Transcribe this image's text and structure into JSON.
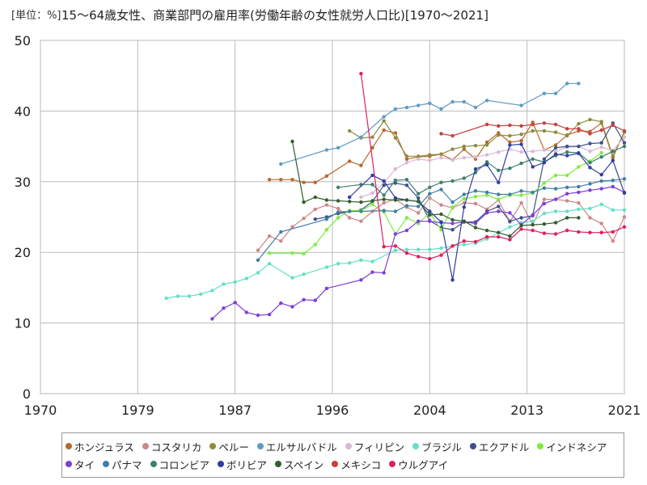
{
  "unit_label": "[単位：%]",
  "title": "15〜64歳女性、商業部門の雇用率(労働年齢の女性就労人口比)[1970〜2021]",
  "chart_data": {
    "type": "line",
    "xlim": [
      1970,
      2021
    ],
    "ylim": [
      0,
      50
    ],
    "xticks": [
      "1970",
      "1979",
      "1987",
      "1996",
      "2004",
      "2013",
      "2021"
    ],
    "xtick_values": [
      1970,
      1978.5,
      1987,
      1995.5,
      2004,
      2012.5,
      2021
    ],
    "yticks": [
      0,
      10,
      20,
      30,
      40,
      50
    ],
    "grid": true,
    "legend_position": "bottom",
    "series": [
      {
        "name": "ホンジュラス",
        "color": "#b8672e",
        "x": [
          1990,
          1991,
          1992,
          1993,
          1994,
          1995,
          1997,
          1998,
          1999,
          2000,
          2001,
          2002,
          2003,
          2004,
          2005,
          2006,
          2007,
          2008,
          2009,
          2010,
          2011,
          2012,
          2013,
          2014,
          2015,
          2016,
          2017,
          2018,
          2019,
          2020,
          2021
        ],
        "y": [
          30.3,
          30.3,
          30.3,
          29.9,
          29.9,
          30.8,
          32.9,
          32.3,
          34.8,
          37.3,
          36.9,
          33.2,
          33.5,
          33.6,
          33.9,
          33.1,
          34.6,
          33.2,
          35.6,
          36.9,
          35.6,
          35.8,
          38.4,
          34.5,
          35.2,
          36.6,
          37.2,
          37.1,
          38.3,
          33.4,
          37.1
        ]
      },
      {
        "name": "コスタリカ",
        "color": "#cd8787",
        "x": [
          1989,
          1990,
          1991,
          1992,
          1993,
          1994,
          1995,
          1996,
          1997,
          1998,
          1999,
          2000,
          2001,
          2002,
          2003,
          2004,
          2005,
          2006,
          2007,
          2008,
          2009,
          2010,
          2011,
          2012,
          2013,
          2014,
          2015,
          2016,
          2017,
          2018,
          2019,
          2020,
          2021
        ],
        "y": [
          20.3,
          22.3,
          21.6,
          23.6,
          24.8,
          26.1,
          26.7,
          26.2,
          24.9,
          24.4,
          25.8,
          27.0,
          27.5,
          26.4,
          25.6,
          27.7,
          26.7,
          26.3,
          27.0,
          26.9,
          26.1,
          27.4,
          24.3,
          27.0,
          23.9,
          27.5,
          27.5,
          27.3,
          27.0,
          24.9,
          24.1,
          21.6,
          25.0
        ]
      },
      {
        "name": "ペルー",
        "color": "#8c8c3c",
        "x": [
          1997,
          1998,
          1999,
          2000,
          2001,
          2002,
          2003,
          2004,
          2005,
          2006,
          2007,
          2008,
          2009,
          2010,
          2011,
          2012,
          2013,
          2014,
          2015,
          2016,
          2017,
          2018,
          2019,
          2020,
          2021
        ],
        "y": [
          37.2,
          36.2,
          36.3,
          38.6,
          36.2,
          33.6,
          33.6,
          33.8,
          33.9,
          34.6,
          35.0,
          35.1,
          35.2,
          36.6,
          36.5,
          36.7,
          37.2,
          37.2,
          37.0,
          36.5,
          38.2,
          38.8,
          38.5,
          33.6,
          37.0
        ]
      },
      {
        "name": "エルサルバドル",
        "color": "#5d9bc2",
        "x": [
          1991,
          1995,
          1996,
          1998,
          2000,
          2001,
          2002,
          2003,
          2004,
          2005,
          2006,
          2007,
          2008,
          2009,
          2012,
          2014,
          2015,
          2016,
          2017
        ],
        "y": [
          32.5,
          34.5,
          34.8,
          36.3,
          39.2,
          40.3,
          40.5,
          40.8,
          41.1,
          40.3,
          41.3,
          41.3,
          40.5,
          41.5,
          40.8,
          42.5,
          42.5,
          43.9,
          43.9
        ]
      },
      {
        "name": "フィリピン",
        "color": "#dbb8d4",
        "x": [
          1998,
          1999,
          2000,
          2001,
          2002,
          2003,
          2004,
          2005,
          2006,
          2007,
          2008,
          2009,
          2010,
          2011,
          2012,
          2013,
          2014,
          2015,
          2016,
          2017,
          2018,
          2019,
          2020,
          2021
        ],
        "y": [
          27.8,
          28.4,
          29.8,
          31.8,
          32.7,
          33.2,
          33.0,
          33.4,
          33.1,
          33.4,
          33.5,
          33.8,
          34.2,
          34.6,
          34.2,
          34.3,
          34.5,
          34.3,
          34.9,
          35.0,
          34.3,
          34.9,
          34.4,
          36.3
        ]
      },
      {
        "name": "ブラジル",
        "color": "#63e0c6",
        "x": [
          1981,
          1982,
          1983,
          1984,
          1985,
          1986,
          1987,
          1988,
          1989,
          1990,
          1992,
          1993,
          1995,
          1996,
          1997,
          1998,
          1999,
          2001,
          2002,
          2003,
          2004,
          2005,
          2006,
          2007,
          2008,
          2009,
          2011,
          2012,
          2013,
          2014,
          2015,
          2016,
          2017,
          2018,
          2019,
          2020,
          2021
        ],
        "y": [
          13.5,
          13.8,
          13.8,
          14.1,
          14.6,
          15.5,
          15.8,
          16.3,
          17.1,
          18.4,
          16.4,
          16.9,
          17.9,
          18.4,
          18.5,
          18.9,
          18.7,
          20.3,
          20.4,
          20.4,
          20.4,
          20.6,
          20.9,
          21.1,
          21.3,
          21.9,
          23.6,
          24.2,
          24.4,
          25.5,
          25.8,
          25.8,
          26.1,
          26.2,
          26.8,
          26.0,
          26.0
        ]
      },
      {
        "name": "エクアドル",
        "color": "#3f4f8c",
        "x": [
          1994,
          1995,
          1996,
          1998,
          1999,
          2000,
          2001,
          2002,
          2003,
          2004,
          2005,
          2006,
          2007,
          2008,
          2009,
          2010,
          2011,
          2012,
          2013,
          2014,
          2015,
          2016,
          2017,
          2018,
          2019,
          2020,
          2021
        ],
        "y": [
          24.7,
          25.0,
          25.5,
          26.0,
          27.2,
          29.5,
          29.8,
          29.5,
          27.7,
          24.5,
          23.5,
          23.2,
          24.3,
          24.3,
          25.8,
          26.5,
          24.4,
          24.9,
          25.2,
          33.2,
          34.8,
          35.0,
          35.0,
          35.4,
          35.5,
          38.3,
          35.5
        ]
      },
      {
        "name": "インドネシア",
        "color": "#7fec3f",
        "x": [
          1990,
          1992,
          1993,
          1994,
          1995,
          1996,
          1997,
          1998,
          1999,
          2000,
          2001,
          2002,
          2003,
          2004,
          2005,
          2006,
          2007,
          2008,
          2009,
          2010,
          2011,
          2012,
          2013,
          2014,
          2015,
          2016,
          2017,
          2018,
          2019
        ],
        "y": [
          19.9,
          19.9,
          19.8,
          21.1,
          23.2,
          24.9,
          25.9,
          25.9,
          26.8,
          25.7,
          22.6,
          24.9,
          24.1,
          25.6,
          23.2,
          26.4,
          27.6,
          27.9,
          28.1,
          27.5,
          28.1,
          28.1,
          28.4,
          29.8,
          30.9,
          30.9,
          32.1,
          32.9,
          34.1
        ]
      },
      {
        "name": "タイ",
        "color": "#7d3fd8",
        "x": [
          1985,
          1986,
          1987,
          1988,
          1989,
          1990,
          1991,
          1992,
          1993,
          1994,
          1995,
          1998,
          1999,
          2000,
          2001,
          2002,
          2003,
          2004,
          2005,
          2006,
          2007,
          2008,
          2009,
          2010,
          2011,
          2012,
          2013,
          2014,
          2015,
          2016,
          2017,
          2018,
          2019,
          2020,
          2021
        ],
        "y": [
          10.6,
          12.1,
          12.9,
          11.5,
          11.1,
          11.2,
          12.8,
          12.3,
          13.3,
          13.2,
          14.9,
          16.1,
          17.2,
          17.1,
          22.6,
          23.1,
          24.4,
          24.4,
          24.2,
          24.1,
          24.3,
          24.1,
          25.6,
          25.8,
          25.6,
          23.9,
          25.3,
          26.9,
          27.5,
          28.3,
          28.5,
          28.8,
          29.0,
          29.3,
          28.5
        ]
      },
      {
        "name": "パナマ",
        "color": "#3f7fa5",
        "x": [
          1989,
          1991,
          1995,
          1996,
          1997,
          1998,
          2000,
          2001,
          2002,
          2003,
          2004,
          2005,
          2006,
          2007,
          2008,
          2009,
          2010,
          2011,
          2012,
          2013,
          2014,
          2015,
          2016,
          2017,
          2018,
          2019,
          2020,
          2021
        ],
        "y": [
          18.9,
          22.9,
          24.7,
          25.7,
          25.8,
          25.8,
          25.9,
          25.8,
          26.6,
          26.5,
          28.3,
          28.9,
          27.1,
          28.2,
          28.7,
          28.5,
          28.2,
          28.2,
          28.7,
          28.5,
          29.1,
          29.0,
          29.2,
          29.3,
          29.7,
          30.1,
          30.2,
          30.4
        ]
      },
      {
        "name": "コロンビア",
        "color": "#3f7f6f",
        "x": [
          1996,
          1998,
          1999,
          2000,
          2001,
          2002,
          2003,
          2004,
          2005,
          2006,
          2007,
          2008,
          2009,
          2010,
          2011,
          2012,
          2013,
          2014,
          2015,
          2016,
          2017,
          2018,
          2019,
          2020,
          2021
        ],
        "y": [
          29.2,
          29.6,
          29.6,
          28.1,
          30.2,
          30.3,
          28.3,
          29.2,
          29.9,
          30.1,
          30.5,
          31.3,
          32.8,
          31.6,
          31.9,
          32.6,
          33.2,
          32.8,
          33.7,
          34.2,
          34.1,
          32.7,
          33.5,
          34.3,
          35.0
        ]
      },
      {
        "name": "ボリビア",
        "color": "#2f3fa0",
        "x": [
          1997,
          1999,
          2000,
          2001,
          2002,
          2003,
          2004,
          2005,
          2006,
          2007,
          2008,
          2009,
          2010,
          2011,
          2012,
          2013,
          2014,
          2015,
          2016,
          2017,
          2018,
          2019,
          2020,
          2021
        ],
        "y": [
          27.8,
          30.9,
          30.1,
          27.7,
          27.4,
          27.2,
          25.8,
          24.3,
          16.1,
          26.4,
          31.8,
          32.4,
          29.9,
          35.2,
          35.3,
          32.1,
          32.7,
          33.9,
          33.7,
          34.0,
          32.0,
          31.0,
          33.0,
          28.4
        ]
      },
      {
        "name": "スペイン",
        "color": "#2f5f2f",
        "x": [
          1992,
          1993,
          1994,
          1995,
          1996,
          1997,
          1998,
          1999,
          2000,
          2001,
          2002,
          2003,
          2004,
          2005,
          2006,
          2007,
          2008,
          2009,
          2010,
          2011,
          2012,
          2013,
          2014,
          2015,
          2016,
          2017
        ],
        "y": [
          35.7,
          27.1,
          27.8,
          27.4,
          27.3,
          27.2,
          27.1,
          27.3,
          27.5,
          27.4,
          27.4,
          27.2,
          25.3,
          25.4,
          24.6,
          24.4,
          23.5,
          23.1,
          22.8,
          22.3,
          23.8,
          23.9,
          24.0,
          24.2,
          24.9,
          24.9
        ]
      },
      {
        "name": "メキシコ",
        "color": "#c83f3f",
        "x": [
          2005,
          2006,
          2009,
          2010,
          2011,
          2012,
          2013,
          2014,
          2015,
          2016,
          2017,
          2018,
          2019,
          2020,
          2021
        ],
        "y": [
          36.8,
          36.5,
          38.1,
          37.9,
          38.0,
          37.9,
          38.1,
          38.3,
          38.1,
          37.5,
          37.5,
          36.8,
          37.3,
          38.0,
          37.2
        ]
      },
      {
        "name": "ウルグアイ",
        "color": "#e01f5f",
        "x": [
          1998,
          2000,
          2001,
          2002,
          2003,
          2004,
          2005,
          2006,
          2007,
          2008,
          2009,
          2010,
          2011,
          2012,
          2013,
          2014,
          2015,
          2016,
          2017,
          2018,
          2019,
          2020,
          2021
        ],
        "y": [
          45.3,
          20.8,
          20.9,
          19.9,
          19.4,
          19.1,
          19.6,
          20.9,
          21.6,
          21.5,
          22.2,
          22.2,
          21.8,
          23.3,
          23.1,
          22.7,
          22.6,
          23.1,
          22.9,
          22.8,
          22.8,
          22.9,
          23.6
        ]
      }
    ]
  }
}
